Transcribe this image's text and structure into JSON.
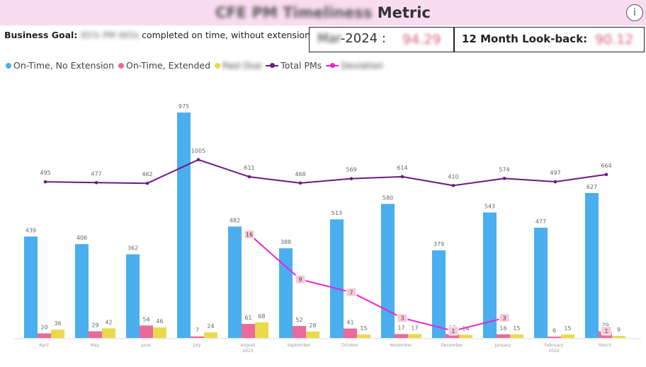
{
  "header": {
    "title_blurred": "CFE PM Timeliness",
    "title_suffix": "Metric",
    "info_icon": "info-icon"
  },
  "goal": {
    "label": "Business Goal:",
    "blurred": "95% PM WOs",
    "text": "completed on time, without extensions."
  },
  "kpi": {
    "month_blurred": "Mar",
    "month_rest": "-2024 :",
    "month_value": "94.29",
    "lookback_label": "12 Month Look-back:",
    "lookback_value": "90.12"
  },
  "legend": [
    {
      "label": "On-Time, No Extension",
      "color": "#4aaeef",
      "kind": "dot"
    },
    {
      "label": "On-Time, Extended",
      "color": "#ea6a9a",
      "kind": "dot"
    },
    {
      "label": "Past Due",
      "color": "#ead94c",
      "kind": "dot",
      "blurred": true
    },
    {
      "label": "Total PMs",
      "color": "#6b1a82",
      "kind": "line",
      "partial_blur": "PMs"
    },
    {
      "label": "Deviation",
      "color": "#ee22d4",
      "kind": "line",
      "blurred": true
    }
  ],
  "chart_data": {
    "type": "bar",
    "categories": [
      "April",
      "May",
      "June",
      "July",
      "August 2023",
      "September",
      "October",
      "November",
      "December",
      "January",
      "February 2024",
      "March"
    ],
    "series": [
      {
        "name": "On-Time, No Extension",
        "color": "#4aaeef",
        "values": [
          439,
          406,
          362,
          975,
          482,
          388,
          513,
          580,
          379,
          543,
          477,
          627
        ]
      },
      {
        "name": "On-Time, Extended",
        "color": "#ea6a9a",
        "values": [
          20,
          29,
          54,
          7,
          61,
          52,
          41,
          17,
          17,
          16,
          6,
          29
        ]
      },
      {
        "name": "Past Due",
        "color": "#ead94c",
        "values": [
          36,
          42,
          46,
          24,
          68,
          28,
          15,
          17,
          14,
          15,
          15,
          9
        ]
      }
    ],
    "total": {
      "name": "Total PMs",
      "color": "#6b1a82",
      "values": [
        495,
        477,
        462,
        1005,
        611,
        468,
        569,
        614,
        410,
        574,
        497,
        664
      ]
    },
    "deviation": {
      "name": "Deviation",
      "color": "#ee22d4",
      "values": [
        null,
        null,
        null,
        null,
        16,
        9,
        7,
        3,
        1,
        3,
        null,
        1
      ]
    },
    "ylim_bars": [
      0,
      1000
    ],
    "ylim_lines": [
      0,
      1100
    ],
    "bar_label_overrides": {
      "On-Time, No Extension": {
        "July": 975
      }
    },
    "legend_position": "top-left"
  }
}
